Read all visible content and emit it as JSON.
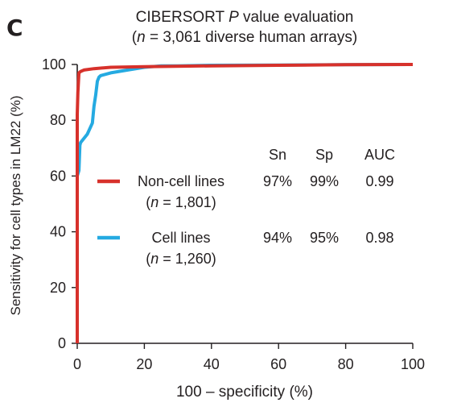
{
  "chart_data": {
    "type": "line",
    "panel_label": "C",
    "title": "CIBERSORT P value evaluation",
    "title_italic": "P",
    "subtitle": "(n = 3,061 diverse human arrays)",
    "subtitle_italic": "n",
    "xlabel": "100 – specificity (%)",
    "ylabel": "Sensitivity for cell types in LM22 (%)",
    "xlim": [
      0,
      100
    ],
    "ylim": [
      0,
      100
    ],
    "xticks": [
      0,
      20,
      40,
      60,
      80,
      100
    ],
    "yticks": [
      0,
      20,
      40,
      60,
      80,
      100
    ],
    "grid": false,
    "legend_placement": "center-right inside plot",
    "stats_headers": [
      "Sn",
      "Sp",
      "AUC"
    ],
    "series": [
      {
        "name": "Non-cell lines",
        "n_label": "(n = 1,801)",
        "color": "#d7312b",
        "stats": [
          "97%",
          "99%",
          "0.99"
        ],
        "x": [
          0,
          0,
          0.2,
          0.5,
          1,
          2,
          5,
          10,
          20,
          40,
          60,
          80,
          100
        ],
        "y": [
          0,
          82,
          90,
          97,
          97.5,
          98,
          98.5,
          99,
          99.2,
          99.5,
          99.7,
          99.9,
          100
        ]
      },
      {
        "name": "Cell lines",
        "n_label": "(n = 1,260)",
        "color": "#25aae1",
        "stats": [
          "94%",
          "95%",
          "0.98"
        ],
        "x": [
          0,
          0,
          0.5,
          0.8,
          1,
          3,
          4.5,
          5,
          5.5,
          6,
          6.5,
          7,
          10,
          15,
          20,
          25,
          30,
          40,
          60,
          80,
          100
        ],
        "y": [
          0,
          60,
          62,
          71,
          72,
          75,
          79,
          85,
          89,
          94,
          95.5,
          96,
          97,
          98,
          99,
          99.5,
          99.5,
          99.7,
          99.8,
          99.9,
          100
        ]
      }
    ]
  }
}
